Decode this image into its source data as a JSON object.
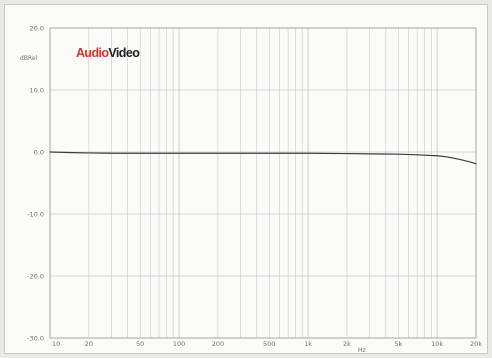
{
  "chart_data": {
    "type": "line",
    "title": "",
    "xlabel": "Hz",
    "ylabel": "dBRel",
    "x_scale": "log",
    "xlim": [
      10,
      20000
    ],
    "ylim": [
      -30,
      20
    ],
    "grid": true,
    "x_tick_labels": [
      {
        "value": 10,
        "label": "10"
      },
      {
        "value": 20,
        "label": "20"
      },
      {
        "value": 50,
        "label": "50"
      },
      {
        "value": 100,
        "label": "100"
      },
      {
        "value": 200,
        "label": "200"
      },
      {
        "value": 500,
        "label": "500"
      },
      {
        "value": 1000,
        "label": "1k"
      },
      {
        "value": 2000,
        "label": "2k"
      },
      {
        "value": 5000,
        "label": "5k"
      },
      {
        "value": 10000,
        "label": "10k"
      },
      {
        "value": 20000,
        "label": "20k"
      }
    ],
    "y_tick_labels": [
      {
        "value": 20,
        "label": "20.0"
      },
      {
        "value": 10,
        "label": "10.0"
      },
      {
        "value": 0,
        "label": "0.0"
      },
      {
        "value": -10,
        "label": "-10.0"
      },
      {
        "value": -20,
        "label": "-20.0"
      },
      {
        "value": -30,
        "label": "-30.0"
      }
    ],
    "series": [
      {
        "x": [
          10,
          15,
          20,
          30,
          50,
          100,
          200,
          500,
          1000,
          2000,
          3000,
          5000,
          7000,
          10000,
          12000,
          15000,
          18000,
          20000
        ],
        "y": [
          0.0,
          -0.1,
          -0.15,
          -0.2,
          -0.2,
          -0.2,
          -0.2,
          -0.2,
          -0.2,
          -0.25,
          -0.3,
          -0.35,
          -0.45,
          -0.6,
          -0.8,
          -1.2,
          -1.6,
          -1.9
        ],
        "color": "#3c3c3c"
      }
    ],
    "logo": {
      "part1": "Audio",
      "part2": "Video",
      "color1": "#d8322a",
      "color2": "#1e1e1e"
    }
  },
  "colors": {
    "grid": "#c8c8c8",
    "axis": "#9a9a9a",
    "curve": "#3c3c3c"
  }
}
